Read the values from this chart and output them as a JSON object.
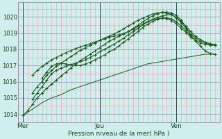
{
  "bg_color": "#d0eeee",
  "line_color": "#1a5c1a",
  "xlabel": "Pression niveau de la mer( hPa )",
  "ylim": [
    1013.5,
    1020.9
  ],
  "yticks": [
    1014,
    1015,
    1016,
    1017,
    1018,
    1019,
    1020
  ],
  "day_labels": [
    "Mer",
    "Jeu",
    "Ven"
  ],
  "day_positions": [
    0,
    48,
    96
  ],
  "xlim": [
    -3,
    123
  ],
  "total_hours": 120,
  "lines": [
    {
      "x": [
        0,
        3,
        6,
        9,
        12,
        15,
        18,
        21,
        24,
        27,
        30,
        33,
        36,
        39,
        42,
        45,
        48,
        51,
        54,
        57,
        60,
        63,
        66,
        69,
        72,
        75,
        78,
        81,
        84,
        87,
        90,
        93,
        96,
        99,
        102,
        105,
        108,
        111,
        114,
        117,
        120
      ],
      "y": [
        1013.9,
        1014.1,
        1014.3,
        1014.5,
        1014.7,
        1014.85,
        1015.0,
        1015.1,
        1015.2,
        1015.35,
        1015.5,
        1015.6,
        1015.7,
        1015.8,
        1015.9,
        1016.0,
        1016.1,
        1016.2,
        1016.3,
        1016.4,
        1016.5,
        1016.6,
        1016.7,
        1016.8,
        1016.9,
        1017.0,
        1017.1,
        1017.15,
        1017.2,
        1017.25,
        1017.3,
        1017.35,
        1017.4,
        1017.45,
        1017.5,
        1017.55,
        1017.6,
        1017.65,
        1017.7,
        1017.7,
        1017.7
      ],
      "markers": false
    },
    {
      "x": [
        0,
        3,
        6,
        9,
        12,
        15,
        18,
        21,
        24,
        27,
        30,
        33,
        36,
        39,
        42,
        45,
        48,
        51,
        54,
        57,
        60,
        63,
        66,
        69,
        72,
        75,
        78,
        81,
        84,
        87,
        90,
        93,
        96,
        99,
        102,
        105,
        108,
        111,
        114,
        117,
        120
      ],
      "y": [
        1013.9,
        1014.2,
        1014.6,
        1015.0,
        1015.3,
        1015.6,
        1015.85,
        1016.1,
        1016.35,
        1016.6,
        1016.85,
        1017.1,
        1017.3,
        1017.5,
        1017.7,
        1017.9,
        1018.1,
        1018.3,
        1018.5,
        1018.65,
        1018.8,
        1018.95,
        1019.1,
        1019.3,
        1019.5,
        1019.7,
        1019.9,
        1020.05,
        1020.2,
        1020.3,
        1020.3,
        1020.25,
        1020.1,
        1019.8,
        1019.4,
        1018.9,
        1018.5,
        1018.2,
        1017.9,
        1017.75,
        1017.7
      ],
      "markers": true
    },
    {
      "x": [
        6,
        9,
        12,
        15,
        18,
        21,
        24,
        27,
        30,
        33,
        36,
        39,
        42,
        45,
        48,
        51,
        54,
        57,
        60,
        63,
        66,
        69,
        72,
        75,
        78,
        81,
        84,
        87,
        90,
        93,
        96,
        99,
        102,
        105,
        108,
        111,
        114,
        117,
        120
      ],
      "y": [
        1015.3,
        1015.7,
        1016.0,
        1016.4,
        1016.7,
        1016.95,
        1017.15,
        1017.35,
        1017.55,
        1017.75,
        1017.95,
        1018.1,
        1018.25,
        1018.4,
        1018.55,
        1018.7,
        1018.82,
        1018.95,
        1019.1,
        1019.27,
        1019.45,
        1019.62,
        1019.8,
        1019.93,
        1020.06,
        1020.17,
        1020.25,
        1020.27,
        1020.25,
        1020.15,
        1019.95,
        1019.65,
        1019.3,
        1018.95,
        1018.7,
        1018.5,
        1018.4,
        1018.32,
        1018.25
      ],
      "markers": true
    },
    {
      "x": [
        6,
        9,
        12,
        15,
        18,
        21,
        24,
        27,
        30,
        33,
        36,
        39,
        42,
        45,
        48,
        51,
        54,
        57,
        60,
        63,
        66,
        69,
        72,
        75,
        78,
        81,
        84,
        87,
        90,
        93,
        96,
        99,
        102,
        105,
        108,
        111,
        114,
        117,
        120
      ],
      "y": [
        1016.4,
        1016.7,
        1016.95,
        1017.15,
        1017.35,
        1017.5,
        1017.65,
        1017.8,
        1017.92,
        1018.05,
        1018.15,
        1018.25,
        1018.35,
        1018.45,
        1018.55,
        1018.65,
        1018.75,
        1018.82,
        1018.9,
        1018.98,
        1019.1,
        1019.25,
        1019.42,
        1019.57,
        1019.72,
        1019.83,
        1019.9,
        1019.93,
        1019.9,
        1019.78,
        1019.58,
        1019.3,
        1019.05,
        1018.75,
        1018.55,
        1018.4,
        1018.3,
        1018.27,
        1018.25
      ],
      "markers": true
    },
    {
      "x": [
        6,
        9,
        12,
        15,
        18,
        21,
        24,
        27,
        30,
        33,
        36,
        39,
        42,
        45,
        48,
        51,
        54,
        57,
        60,
        63,
        66,
        69,
        72,
        75,
        78,
        81,
        84,
        87,
        90,
        93,
        96,
        99,
        102,
        105,
        108,
        111,
        114,
        117,
        120
      ],
      "y": [
        1014.9,
        1015.3,
        1015.7,
        1016.1,
        1016.5,
        1016.7,
        1016.85,
        1016.95,
        1017.05,
        1017.15,
        1017.25,
        1017.35,
        1017.5,
        1017.65,
        1017.85,
        1018.0,
        1018.15,
        1018.32,
        1018.5,
        1018.7,
        1018.9,
        1019.1,
        1019.3,
        1019.5,
        1019.7,
        1019.85,
        1019.97,
        1020.07,
        1020.13,
        1020.13,
        1019.97,
        1019.72,
        1019.42,
        1019.1,
        1018.8,
        1018.6,
        1018.45,
        1018.35,
        1018.3
      ],
      "markers": true
    },
    {
      "x": [
        12,
        15,
        18,
        21,
        24,
        27,
        30,
        33,
        36,
        39,
        42,
        45,
        48,
        51,
        54,
        57,
        60,
        63,
        66,
        69,
        72,
        75,
        78,
        81,
        84,
        87,
        90,
        93,
        96,
        99,
        102,
        105
      ],
      "y": [
        1016.2,
        1016.6,
        1016.95,
        1017.1,
        1017.15,
        1017.1,
        1017.05,
        1017.0,
        1017.0,
        1017.1,
        1017.2,
        1017.35,
        1017.5,
        1017.65,
        1017.85,
        1018.0,
        1018.2,
        1018.45,
        1018.65,
        1018.9,
        1019.1,
        1019.35,
        1019.55,
        1019.72,
        1019.85,
        1019.92,
        1019.95,
        1019.87,
        1019.7,
        1019.45,
        1019.15,
        1018.85
      ],
      "markers": true
    }
  ]
}
